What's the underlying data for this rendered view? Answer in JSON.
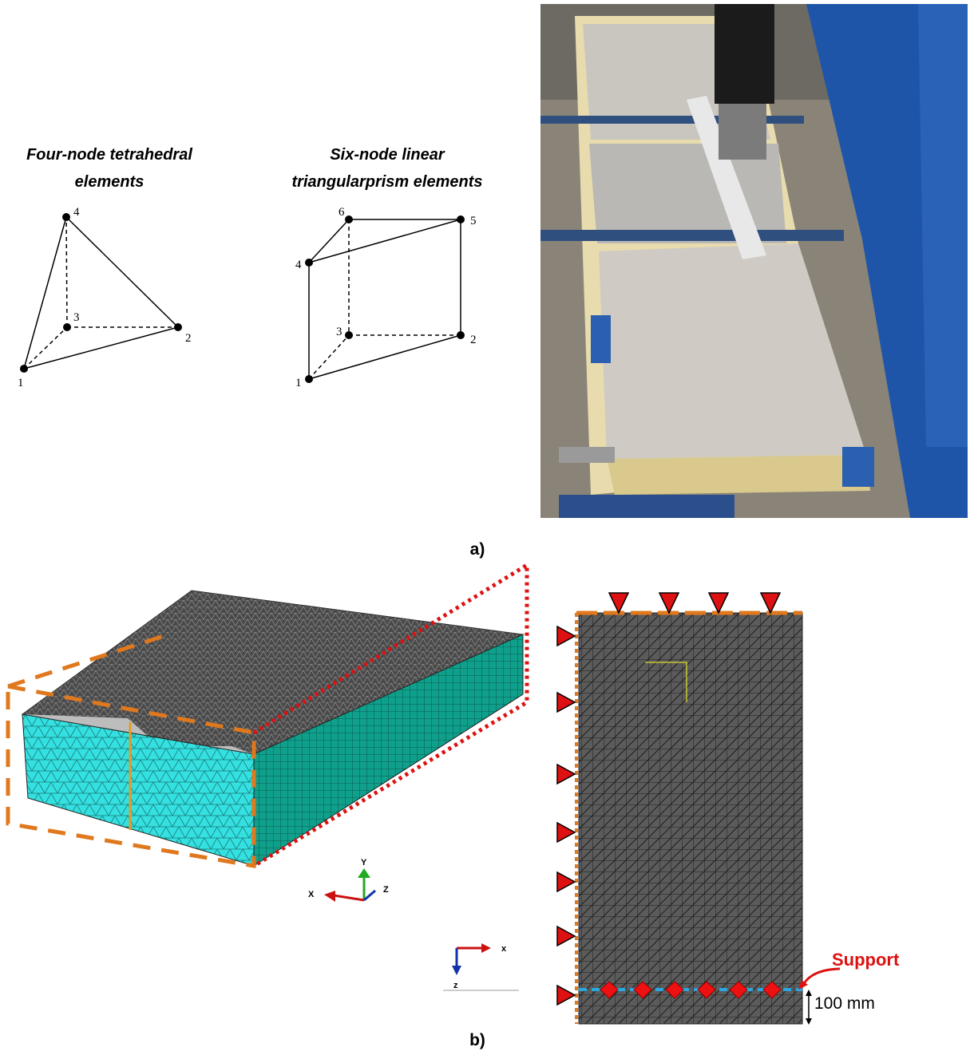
{
  "panel_a": {
    "label": "a)",
    "tetrahedron": {
      "title_lines": [
        "Four-node tetrahedral",
        "elements"
      ],
      "nodes": [
        "1",
        "2",
        "3",
        "4"
      ]
    },
    "prism": {
      "title_lines": [
        "Six-node linear",
        "triangularprism elements"
      ],
      "nodes": [
        "1",
        "2",
        "3",
        "4",
        "5",
        "6"
      ]
    }
  },
  "panel_b": {
    "label": "b)",
    "axes_3d": {
      "x": "X",
      "y": "Y",
      "z": "Z"
    },
    "axes_2d": {
      "x": "x",
      "z": "z"
    },
    "support_label": "Support",
    "dimension": "100 mm"
  }
}
